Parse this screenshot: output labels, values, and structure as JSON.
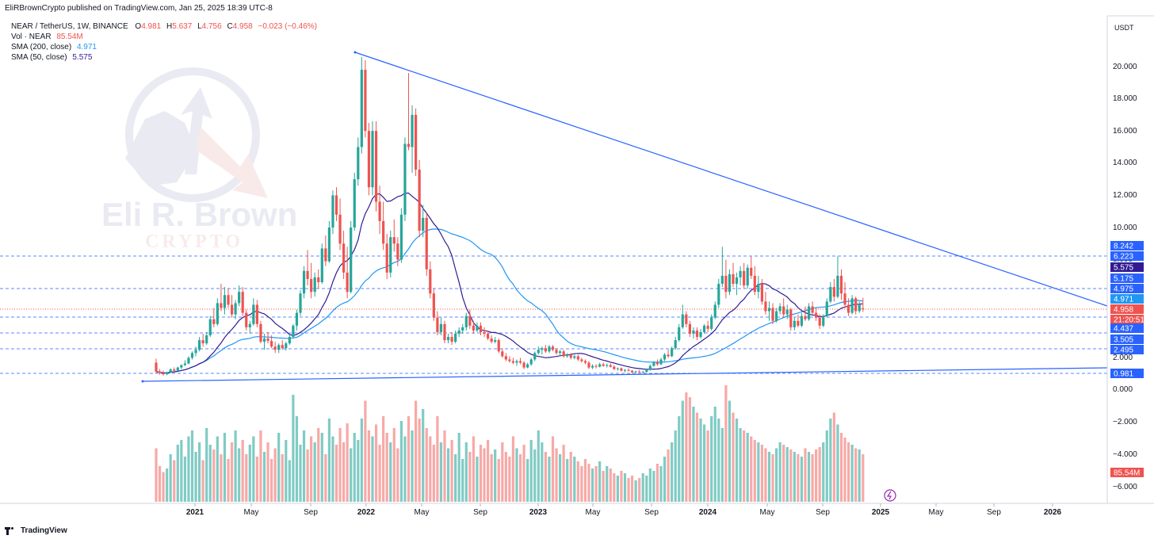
{
  "header": {
    "published": "EliRBrownCrypto published on TradingView.com, Jan 25, 2025 18:39 UTC-8"
  },
  "legend": {
    "symbol": "NEAR / TetherUS, 1W, BINANCE",
    "ohlc": {
      "open_label": "O",
      "open": "4.981",
      "high_label": "H",
      "high": "5.637",
      "low_label": "L",
      "low": "4.756",
      "close_label": "C",
      "close": "4.958",
      "change": "−0.023 (−0.46%)"
    },
    "vol": {
      "label": "Vol · NEAR",
      "value": "85.54M"
    },
    "sma200": {
      "label": "SMA (200, close)",
      "value": "4.971"
    },
    "sma50": {
      "label": "SMA (50, close)",
      "value": "5.575"
    }
  },
  "watermark": {
    "line1": "Eli R. Brown",
    "line2": "CRYPTO"
  },
  "footer": {
    "brand": "TradingView"
  },
  "colors": {
    "up": "#26a69a",
    "down": "#ef5350",
    "trend": "#2962ff",
    "sma200": "#2196f3",
    "sma50": "#311b92",
    "vol_up": "#80cbc4",
    "vol_down": "#f7a9a7",
    "watermark_red": "#c62828",
    "watermark_navy": "#1a237e"
  },
  "chart_data": {
    "type": "candlestick",
    "price_axis": {
      "currency": "USDT",
      "ticks": [
        "20.000",
        "18.000",
        "16.000",
        "14.000",
        "12.000",
        "10.000",
        "8.000",
        "2.000",
        "0.000",
        "−2.000",
        "−4.000",
        "−6.000"
      ],
      "price_tick_values": [
        20,
        18,
        16,
        14,
        12,
        10,
        8
      ]
    },
    "time_axis": {
      "ticks": [
        "2021",
        "May",
        "Sep",
        "2022",
        "May",
        "Sep",
        "2023",
        "May",
        "Sep",
        "2024",
        "May",
        "Sep",
        "2025",
        "May",
        "Sep",
        "2026"
      ]
    },
    "levels": [
      {
        "label": "8.242",
        "bg": "#2962ff",
        "color": "#ffffff"
      },
      {
        "label": "6.223",
        "bg": "#2962ff",
        "color": "#ffffff"
      },
      {
        "label": "5.575",
        "bg": "#311b92",
        "color": "#ffffff"
      },
      {
        "label": "5.175",
        "bg": "#2962ff",
        "color": "#ffffff"
      },
      {
        "label": "4.975",
        "bg": "#2962ff",
        "color": "#ffffff"
      },
      {
        "label": "4.971",
        "bg": "#2196f3",
        "color": "#ffffff"
      },
      {
        "label": "4.958",
        "bg": "#ef5350",
        "color": "#ffffff"
      },
      {
        "label": "21:20:51",
        "bg": "#ef5350",
        "color": "#ffffff"
      },
      {
        "label": "4.437",
        "bg": "#2962ff",
        "color": "#ffffff"
      },
      {
        "label": "3.505",
        "bg": "#2962ff",
        "color": "#ffffff"
      },
      {
        "label": "2.495",
        "bg": "#2962ff",
        "color": "#ffffff"
      },
      {
        "label": "0.981",
        "bg": "#2962ff",
        "color": "#ffffff"
      },
      {
        "label": "85.54M",
        "bg": "#ef5350",
        "color": "#ffffff"
      }
    ],
    "trendlines": [
      {
        "name": "descending-resistance",
        "from": [
          "2022-01",
          "20.6"
        ],
        "to": [
          "2026-06",
          "4.8"
        ]
      },
      {
        "name": "ascending-support",
        "from": [
          "2020-10",
          "0.5"
        ],
        "to": [
          "2026-06",
          "1.45"
        ]
      }
    ],
    "candles": [
      [
        1.6,
        1.85,
        0.95,
        1.05
      ],
      [
        1.05,
        1.2,
        0.85,
        0.95
      ],
      [
        0.95,
        1.1,
        0.8,
        0.88
      ],
      [
        0.88,
        1.05,
        0.82,
        1.0
      ],
      [
        1.0,
        1.25,
        0.95,
        1.18
      ],
      [
        1.18,
        1.3,
        1.05,
        1.1
      ],
      [
        1.1,
        1.35,
        1.05,
        1.3
      ],
      [
        1.3,
        1.5,
        1.2,
        1.45
      ],
      [
        1.45,
        1.75,
        1.4,
        1.55
      ],
      [
        1.55,
        2.0,
        1.5,
        1.9
      ],
      [
        1.9,
        2.3,
        1.8,
        2.2
      ],
      [
        2.2,
        2.6,
        2.0,
        2.4
      ],
      [
        2.4,
        3.2,
        2.3,
        3.0
      ],
      [
        3.0,
        3.4,
        2.6,
        2.8
      ],
      [
        2.8,
        3.5,
        2.7,
        3.3
      ],
      [
        3.3,
        4.5,
        3.2,
        4.3
      ],
      [
        4.3,
        5.0,
        3.8,
        4.0
      ],
      [
        4.0,
        5.6,
        3.9,
        5.3
      ],
      [
        5.3,
        6.5,
        4.8,
        5.0
      ],
      [
        5.0,
        6.3,
        4.6,
        5.8
      ],
      [
        5.8,
        6.2,
        5.0,
        5.2
      ],
      [
        5.2,
        5.8,
        4.4,
        4.6
      ],
      [
        4.6,
        5.5,
        4.3,
        5.3
      ],
      [
        5.3,
        6.4,
        5.1,
        6.0
      ],
      [
        6.0,
        6.3,
        4.5,
        4.7
      ],
      [
        4.7,
        4.9,
        3.6,
        3.8
      ],
      [
        3.8,
        4.2,
        3.4,
        4.0
      ],
      [
        4.0,
        5.6,
        3.9,
        5.2
      ],
      [
        5.2,
        5.5,
        3.8,
        4.0
      ],
      [
        4.0,
        4.2,
        2.8,
        2.9
      ],
      [
        2.9,
        3.4,
        2.4,
        3.1
      ],
      [
        3.1,
        3.5,
        2.8,
        2.95
      ],
      [
        2.95,
        3.3,
        2.5,
        2.6
      ],
      [
        2.6,
        2.9,
        2.2,
        2.4
      ],
      [
        2.4,
        2.8,
        2.2,
        2.7
      ],
      [
        2.7,
        3.0,
        2.4,
        2.5
      ],
      [
        2.5,
        2.9,
        2.35,
        2.8
      ],
      [
        2.8,
        3.3,
        2.7,
        3.2
      ],
      [
        3.2,
        4.0,
        3.1,
        3.9
      ],
      [
        3.9,
        4.9,
        3.6,
        4.7
      ],
      [
        4.7,
        6.1,
        4.5,
        5.9
      ],
      [
        5.9,
        7.6,
        5.6,
        7.3
      ],
      [
        7.3,
        8.6,
        6.4,
        6.8
      ],
      [
        6.8,
        7.8,
        5.6,
        6.0
      ],
      [
        6.0,
        7.2,
        5.7,
        6.9
      ],
      [
        6.9,
        7.4,
        6.2,
        6.6
      ],
      [
        6.6,
        9.0,
        6.5,
        8.7
      ],
      [
        8.7,
        9.5,
        7.6,
        7.9
      ],
      [
        7.9,
        10.4,
        7.8,
        10.0
      ],
      [
        10.0,
        12.3,
        9.6,
        12.0
      ],
      [
        12.0,
        12.5,
        10.4,
        10.8
      ],
      [
        10.8,
        11.8,
        8.6,
        9.0
      ],
      [
        9.0,
        9.8,
        6.8,
        7.2
      ],
      [
        7.2,
        8.8,
        5.6,
        6.0
      ],
      [
        6.0,
        10.4,
        5.9,
        10.0
      ],
      [
        10.0,
        13.4,
        9.8,
        13.0
      ],
      [
        13.0,
        15.6,
        12.6,
        15.0
      ],
      [
        15.0,
        20.6,
        14.6,
        19.8
      ],
      [
        19.8,
        20.4,
        15.6,
        16.0
      ],
      [
        16.0,
        16.5,
        12.0,
        12.5
      ],
      [
        12.5,
        16.6,
        12.0,
        16.0
      ],
      [
        16.0,
        16.6,
        11.0,
        11.6
      ],
      [
        11.6,
        12.6,
        9.6,
        10.4
      ],
      [
        10.4,
        11.6,
        8.6,
        9.0
      ],
      [
        9.0,
        9.6,
        6.8,
        7.2
      ],
      [
        7.2,
        9.8,
        6.9,
        9.4
      ],
      [
        9.4,
        10.5,
        8.5,
        9.0
      ],
      [
        9.0,
        9.4,
        7.6,
        8.0
      ],
      [
        8.0,
        11.2,
        7.8,
        10.8
      ],
      [
        10.8,
        15.6,
        10.4,
        15.2
      ],
      [
        15.2,
        19.6,
        14.8,
        15.0
      ],
      [
        15.0,
        17.6,
        13.4,
        17.0
      ],
      [
        17.0,
        17.4,
        13.2,
        13.6
      ],
      [
        13.6,
        14.2,
        9.4,
        9.8
      ],
      [
        9.8,
        11.4,
        9.4,
        10.6
      ],
      [
        10.6,
        10.9,
        7.0,
        7.4
      ],
      [
        7.4,
        7.9,
        5.6,
        5.9
      ],
      [
        5.9,
        6.2,
        4.2,
        4.4
      ],
      [
        4.4,
        4.8,
        3.3,
        3.5
      ],
      [
        3.5,
        4.4,
        3.3,
        4.0
      ],
      [
        4.0,
        4.2,
        2.8,
        3.0
      ],
      [
        3.0,
        3.4,
        2.8,
        3.2
      ],
      [
        3.2,
        3.5,
        2.7,
        2.9
      ],
      [
        2.9,
        3.6,
        2.8,
        3.4
      ],
      [
        3.4,
        3.8,
        3.2,
        3.6
      ],
      [
        3.6,
        4.0,
        3.4,
        3.8
      ],
      [
        3.8,
        4.7,
        3.6,
        4.5
      ],
      [
        4.5,
        4.9,
        3.7,
        3.9
      ],
      [
        3.9,
        4.2,
        3.4,
        3.6
      ],
      [
        3.6,
        4.1,
        3.5,
        3.9
      ],
      [
        3.9,
        4.1,
        3.3,
        3.5
      ],
      [
        3.5,
        3.8,
        3.2,
        3.4
      ],
      [
        3.4,
        3.6,
        3.0,
        3.1
      ],
      [
        3.1,
        3.3,
        2.8,
        2.9
      ],
      [
        2.9,
        3.2,
        2.8,
        3.0
      ],
      [
        3.0,
        3.1,
        2.2,
        2.3
      ],
      [
        2.3,
        2.5,
        1.9,
        2.0
      ],
      [
        2.0,
        2.2,
        1.7,
        1.8
      ],
      [
        1.8,
        2.0,
        1.6,
        1.7
      ],
      [
        1.7,
        1.9,
        1.5,
        1.6
      ],
      [
        1.6,
        1.8,
        1.4,
        1.7
      ],
      [
        1.7,
        1.9,
        1.5,
        1.6
      ],
      [
        1.6,
        1.7,
        1.2,
        1.3
      ],
      [
        1.3,
        1.6,
        1.25,
        1.5
      ],
      [
        1.5,
        1.9,
        1.4,
        1.8
      ],
      [
        1.8,
        2.3,
        1.7,
        2.2
      ],
      [
        2.2,
        2.6,
        2.1,
        2.4
      ],
      [
        2.4,
        2.6,
        2.1,
        2.5
      ],
      [
        2.5,
        2.7,
        2.2,
        2.3
      ],
      [
        2.3,
        2.7,
        2.2,
        2.6
      ],
      [
        2.6,
        2.7,
        2.3,
        2.4
      ],
      [
        2.4,
        2.5,
        2.1,
        2.2
      ],
      [
        2.2,
        2.4,
        2.0,
        2.3
      ],
      [
        2.3,
        2.4,
        1.9,
        2.0
      ],
      [
        2.0,
        2.2,
        1.9,
        2.1
      ],
      [
        2.1,
        2.2,
        1.8,
        1.9
      ],
      [
        1.9,
        2.1,
        1.8,
        2.0
      ],
      [
        2.0,
        2.1,
        1.7,
        1.8
      ],
      [
        1.8,
        1.9,
        1.6,
        1.7
      ],
      [
        1.7,
        1.8,
        1.5,
        1.6
      ],
      [
        1.6,
        1.7,
        1.2,
        1.3
      ],
      [
        1.3,
        1.5,
        1.2,
        1.4
      ],
      [
        1.4,
        1.5,
        1.25,
        1.35
      ],
      [
        1.35,
        1.6,
        1.3,
        1.5
      ],
      [
        1.5,
        1.6,
        1.35,
        1.4
      ],
      [
        1.4,
        1.55,
        1.3,
        1.45
      ],
      [
        1.45,
        1.55,
        1.3,
        1.35
      ],
      [
        1.35,
        1.45,
        1.15,
        1.2
      ],
      [
        1.2,
        1.3,
        1.1,
        1.25
      ],
      [
        1.25,
        1.3,
        1.05,
        1.1
      ],
      [
        1.1,
        1.2,
        1.0,
        1.15
      ],
      [
        1.15,
        1.25,
        1.05,
        1.1
      ],
      [
        1.1,
        1.15,
        0.95,
        1.0
      ],
      [
        1.0,
        1.1,
        0.95,
        1.05
      ],
      [
        1.05,
        1.15,
        0.98,
        1.0
      ],
      [
        1.0,
        1.1,
        0.95,
        1.02
      ],
      [
        1.02,
        1.2,
        1.0,
        1.15
      ],
      [
        1.15,
        1.5,
        1.1,
        1.4
      ],
      [
        1.4,
        1.7,
        1.35,
        1.6
      ],
      [
        1.6,
        1.8,
        1.4,
        1.5
      ],
      [
        1.5,
        1.9,
        1.45,
        1.8
      ],
      [
        1.8,
        2.2,
        1.7,
        2.1
      ],
      [
        2.1,
        2.4,
        1.9,
        2.0
      ],
      [
        2.0,
        2.6,
        1.95,
        2.5
      ],
      [
        2.5,
        3.2,
        2.4,
        3.0
      ],
      [
        3.0,
        4.0,
        2.9,
        3.8
      ],
      [
        3.8,
        5.2,
        3.7,
        4.6
      ],
      [
        4.6,
        4.8,
        3.8,
        4.0
      ],
      [
        4.0,
        4.2,
        3.2,
        3.4
      ],
      [
        3.4,
        3.8,
        3.1,
        3.6
      ],
      [
        3.6,
        3.8,
        3.0,
        3.2
      ],
      [
        3.2,
        3.7,
        3.1,
        3.5
      ],
      [
        3.5,
        4.0,
        3.4,
        3.9
      ],
      [
        3.9,
        4.2,
        3.5,
        3.7
      ],
      [
        3.7,
        4.6,
        3.6,
        4.4
      ],
      [
        4.4,
        5.4,
        4.3,
        5.2
      ],
      [
        5.2,
        6.8,
        5.0,
        6.5
      ],
      [
        6.5,
        8.8,
        6.3,
        7.0
      ],
      [
        7.0,
        8.0,
        5.6,
        6.0
      ],
      [
        6.0,
        7.4,
        5.8,
        7.1
      ],
      [
        7.1,
        7.8,
        6.3,
        6.5
      ],
      [
        6.5,
        7.2,
        5.8,
        6.9
      ],
      [
        6.9,
        7.6,
        6.4,
        7.3
      ],
      [
        7.3,
        7.8,
        6.2,
        6.4
      ],
      [
        6.4,
        7.7,
        6.2,
        7.5
      ],
      [
        7.5,
        8.2,
        6.8,
        7.0
      ],
      [
        7.0,
        7.6,
        5.8,
        6.0
      ],
      [
        6.0,
        7.0,
        5.6,
        6.5
      ],
      [
        6.5,
        6.8,
        5.2,
        5.4
      ],
      [
        5.4,
        6.0,
        4.6,
        4.8
      ],
      [
        4.8,
        5.4,
        4.2,
        5.0
      ],
      [
        5.0,
        5.3,
        4.0,
        4.2
      ],
      [
        4.2,
        5.0,
        4.1,
        4.8
      ],
      [
        4.8,
        5.3,
        4.6,
        5.1
      ],
      [
        5.1,
        5.6,
        4.4,
        4.6
      ],
      [
        4.6,
        5.2,
        4.3,
        4.9
      ],
      [
        4.9,
        5.0,
        3.6,
        3.8
      ],
      [
        3.8,
        4.4,
        3.6,
        4.2
      ],
      [
        4.2,
        4.6,
        3.8,
        3.9
      ],
      [
        3.9,
        4.7,
        3.8,
        4.5
      ],
      [
        4.5,
        5.1,
        4.2,
        4.3
      ],
      [
        4.3,
        5.3,
        4.2,
        5.1
      ],
      [
        5.1,
        5.4,
        4.6,
        4.7
      ],
      [
        4.7,
        5.0,
        4.2,
        4.4
      ],
      [
        4.4,
        4.6,
        3.7,
        3.9
      ],
      [
        3.9,
        4.6,
        3.8,
        4.5
      ],
      [
        4.5,
        5.6,
        4.4,
        5.4
      ],
      [
        5.4,
        6.6,
        5.3,
        6.3
      ],
      [
        6.3,
        6.8,
        5.4,
        5.7
      ],
      [
        5.7,
        8.2,
        5.6,
        7.0
      ],
      [
        7.0,
        7.4,
        5.5,
        5.9
      ],
      [
        5.9,
        6.6,
        5.0,
        5.2
      ],
      [
        5.2,
        5.6,
        4.5,
        4.7
      ],
      [
        4.7,
        5.8,
        4.6,
        5.6
      ],
      [
        5.6,
        5.7,
        4.6,
        4.8
      ],
      [
        4.8,
        5.4,
        4.7,
        5.2
      ],
      [
        4.981,
        5.637,
        4.756,
        4.958
      ]
    ],
    "volumes": [
      45,
      30,
      25,
      28,
      40,
      35,
      48,
      52,
      38,
      55,
      60,
      42,
      50,
      35,
      62,
      48,
      44,
      55,
      40,
      58,
      36,
      50,
      60,
      45,
      52,
      40,
      48,
      55,
      38,
      60,
      42,
      50,
      36,
      45,
      58,
      40,
      52,
      35,
      90,
      72,
      48,
      60,
      44,
      55,
      50,
      62,
      58,
      40,
      70,
      55,
      48,
      62,
      50,
      66,
      45,
      58,
      52,
      70,
      85,
      60,
      55,
      65,
      48,
      72,
      58,
      50,
      62,
      45,
      68,
      55,
      72,
      60,
      85,
      70,
      78,
      62,
      55,
      48,
      72,
      50,
      60,
      45,
      52,
      40,
      58,
      36,
      50,
      42,
      55,
      38,
      48,
      45,
      52,
      40,
      44,
      36,
      50,
      42,
      38,
      55,
      45,
      40,
      48,
      36,
      52,
      44,
      60,
      50,
      42,
      38,
      55,
      45,
      40,
      48,
      36,
      42,
      38,
      34,
      30,
      36,
      32,
      28,
      30,
      34,
      26,
      30,
      28,
      24,
      22,
      26,
      24,
      20,
      22,
      18,
      20,
      24,
      22,
      28,
      26,
      32,
      30,
      38,
      44,
      50,
      60,
      72,
      85,
      92,
      88,
      80,
      75,
      70,
      65,
      60,
      72,
      80,
      70,
      62,
      98,
      85,
      75,
      70,
      62,
      60,
      58,
      55,
      52,
      50,
      48,
      45,
      42,
      40,
      45,
      50,
      48,
      46,
      44,
      42,
      40,
      38,
      45,
      42,
      40,
      44,
      46,
      50,
      60,
      70,
      75,
      65,
      58,
      54,
      50,
      48,
      45,
      44,
      40,
      46,
      42,
      45
    ]
  }
}
